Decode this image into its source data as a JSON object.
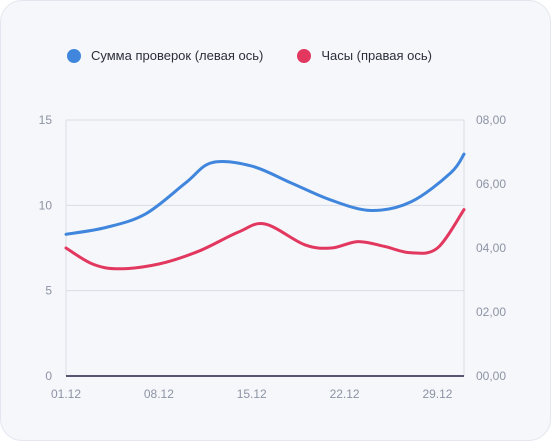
{
  "legend": [
    {
      "label": "Сумма проверок (левая ось)",
      "color": "#3f86dc"
    },
    {
      "label": "Часы (правая ось)",
      "color": "#e2385f"
    }
  ],
  "chart_data": {
    "type": "line",
    "legend_position": "top-left",
    "grid": "horizontal",
    "x_ticks": [
      "01.12",
      "08.12",
      "15.12",
      "22.12",
      "29.12"
    ],
    "x_range": [
      1,
      31
    ],
    "y_left": {
      "ticks": [
        "0",
        "5",
        "10",
        "15"
      ],
      "range": [
        0,
        15
      ]
    },
    "y_right": {
      "ticks": [
        "00,00",
        "02,00",
        "04,00",
        "06,00",
        "08,00"
      ],
      "range": [
        0,
        8
      ]
    },
    "series": [
      {
        "name": "Сумма проверок (левая ось)",
        "axis": "left",
        "color": "#3f86dc",
        "x": [
          1,
          4,
          7,
          10,
          12,
          15,
          18,
          21,
          24,
          27,
          30,
          31
        ],
        "y": [
          8.3,
          8.7,
          9.5,
          11.3,
          12.5,
          12.3,
          11.3,
          10.3,
          9.7,
          10.2,
          11.9,
          13.0
        ]
      },
      {
        "name": "Часы (правая ось)",
        "axis": "right",
        "color": "#e2385f",
        "x": [
          1,
          3,
          5,
          8,
          11,
          14,
          16,
          19,
          21,
          23,
          25,
          27,
          29,
          31
        ],
        "y": [
          4.0,
          3.5,
          3.35,
          3.5,
          3.9,
          4.5,
          4.75,
          4.1,
          4.0,
          4.2,
          4.05,
          3.85,
          4.0,
          5.2
        ]
      }
    ]
  }
}
